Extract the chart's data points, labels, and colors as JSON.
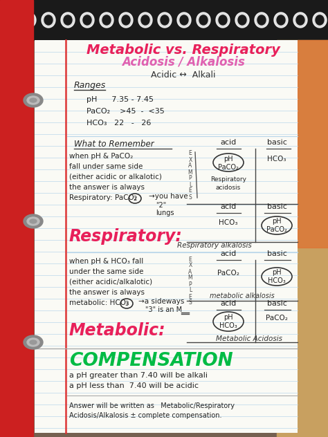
{
  "title1": "Metabolic vs. Respiratory",
  "title2": "Acidosis / Alkalosis",
  "title1_color": "#e8205a",
  "title2_color": "#e060b0",
  "subtitle": "Acidic ↔  Alkali",
  "ranges_label": "Ranges",
  "range1": "pH      7.35 - 7.45",
  "range2": "PaCO₂    >45  -  <35",
  "range3": "HCO₃   22   -   26",
  "wtr": "What to Remember",
  "resp_label": "Respiratory:",
  "resp_label_color": "#e8205a",
  "met_label": "Metabolic:",
  "met_label_color": "#e8205a",
  "comp_label": "COMPENSATION",
  "comp_color": "#00bb44",
  "page_bg": "#fafaf5",
  "line_color": "#c5d8ea",
  "margin_color": "#dd3333",
  "binder_color": "#cc2222",
  "border_bg": "#1a1a1a",
  "top_bg_color": "#8a8070"
}
